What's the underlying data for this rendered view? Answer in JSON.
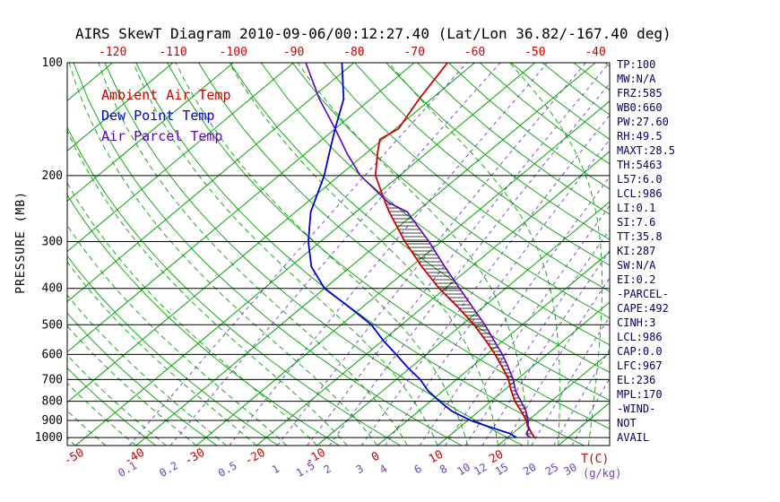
{
  "title": "AIRS SkewT Diagram 2010-09-06/00:12:27.40 (Lat/Lon 36.82/-167.40 deg)",
  "legend": {
    "ambient": "Ambient Air Temp",
    "dew": "Dew Point Temp",
    "parcel": "Air Parcel Temp"
  },
  "axes": {
    "pressure_label": "PRESSURE (MB)",
    "pressure_ticks": [
      100,
      200,
      300,
      400,
      500,
      600,
      700,
      800,
      900,
      1000
    ],
    "top_temp_ticks": [
      -120,
      -110,
      -100,
      -90,
      -80,
      -70,
      -60,
      -50,
      -40
    ],
    "bottom_temp_ticks": [
      -50,
      -40,
      -30,
      -20,
      -10,
      0,
      10,
      20
    ],
    "bottom_temp_unit": "T(C)",
    "mixing_ratio_ticks": [
      0.1,
      0.2,
      0.5,
      1,
      1.5,
      2,
      3,
      4,
      6,
      8,
      10,
      12,
      15,
      20,
      25,
      30
    ],
    "mixing_ratio_unit": "(g/kg)"
  },
  "stats": {
    "lines": [
      "TP:100",
      "MW:N/A",
      "FRZ:585",
      "WB0:660",
      "PW:27.60",
      "RH:49.5",
      "MAXT:28.5",
      "TH:5463",
      "L57:6.0",
      "LCL:986",
      "LI:0.1",
      "SI:7.6",
      "TT:35.8",
      "KI:287",
      "SW:N/A",
      "EI:0.2",
      "-PARCEL-",
      "CAPE:492",
      "CINH:3",
      "LCL:986",
      "CAP:0.0",
      "LFC:967",
      "EL:236",
      "MPL:170",
      "-WIND-",
      "NOT",
      "AVAIL"
    ]
  },
  "colors": {
    "grid_green": "#00a400",
    "mixing_purple": "#6d3fc0",
    "ambient_red": "#cc0000",
    "dew_blue": "#0000cc",
    "parcel_purple": "#6600bb",
    "stats_navy": "#000066",
    "tick_red": "#cc0000",
    "axis_black": "#000000"
  },
  "chart_data": {
    "type": "line",
    "title": "AIRS SkewT Diagram 2010-09-06/00:12:27.40 (Lat/Lon 36.82/-167.40 deg)",
    "x_axis": {
      "label": "T(C)",
      "surface_range_c": [
        -50,
        40
      ],
      "skewed": true
    },
    "y_axis": {
      "label": "PRESSURE (MB)",
      "range_mb": [
        100,
        1050
      ],
      "scale": "log",
      "inverted": true
    },
    "series": [
      {
        "name": "Ambient Air Temp",
        "color": "#cc0000",
        "points_p_t": [
          [
            1000,
            24.5
          ],
          [
            975,
            23.2
          ],
          [
            950,
            22.0
          ],
          [
            925,
            20.8
          ],
          [
            900,
            19.7
          ],
          [
            850,
            17.0
          ],
          [
            800,
            14.0
          ],
          [
            750,
            11.3
          ],
          [
            700,
            8.6
          ],
          [
            650,
            5.2
          ],
          [
            600,
            1.4
          ],
          [
            550,
            -3.0
          ],
          [
            500,
            -8.0
          ],
          [
            450,
            -14.0
          ],
          [
            400,
            -21.0
          ],
          [
            350,
            -28.2
          ],
          [
            300,
            -36.0
          ],
          [
            250,
            -44.5
          ],
          [
            236,
            -47.0
          ],
          [
            200,
            -54.0
          ],
          [
            175,
            -58.0
          ],
          [
            160,
            -60.5
          ],
          [
            150,
            -59.5
          ],
          [
            125,
            -62.0
          ],
          [
            100,
            -64.5
          ]
        ]
      },
      {
        "name": "Dew Point Temp",
        "color": "#0000cc",
        "points_p_t": [
          [
            1000,
            21.5
          ],
          [
            975,
            19.5
          ],
          [
            950,
            16.5
          ],
          [
            925,
            13.5
          ],
          [
            900,
            10.5
          ],
          [
            850,
            5.5
          ],
          [
            800,
            1.5
          ],
          [
            750,
            -2.5
          ],
          [
            700,
            -6.0
          ],
          [
            650,
            -10.5
          ],
          [
            600,
            -15.0
          ],
          [
            550,
            -20.0
          ],
          [
            500,
            -25.0
          ],
          [
            450,
            -32.0
          ],
          [
            400,
            -40.0
          ],
          [
            350,
            -46.5
          ],
          [
            300,
            -52.0
          ],
          [
            250,
            -57.5
          ],
          [
            200,
            -62.5
          ],
          [
            175,
            -66.0
          ],
          [
            150,
            -70.0
          ],
          [
            125,
            -74.5
          ],
          [
            100,
            -82.0
          ]
        ]
      },
      {
        "name": "Air Parcel Temp",
        "color": "#6600bb",
        "points_p_t": [
          [
            1000,
            23.8
          ],
          [
            986,
            22.8
          ],
          [
            975,
            22.3
          ],
          [
            950,
            21.8
          ],
          [
            925,
            20.9
          ],
          [
            900,
            20.0
          ],
          [
            850,
            17.8
          ],
          [
            800,
            15.0
          ],
          [
            750,
            12.0
          ],
          [
            700,
            9.4
          ],
          [
            650,
            6.2
          ],
          [
            600,
            2.6
          ],
          [
            550,
            -1.6
          ],
          [
            500,
            -6.2
          ],
          [
            450,
            -11.6
          ],
          [
            400,
            -17.6
          ],
          [
            350,
            -24.4
          ],
          [
            300,
            -32.0
          ],
          [
            250,
            -41.5
          ],
          [
            236,
            -46.5
          ],
          [
            200,
            -56.5
          ],
          [
            175,
            -63.0
          ],
          [
            150,
            -70.0
          ],
          [
            125,
            -78.5
          ],
          [
            100,
            -88.0
          ]
        ]
      }
    ],
    "background_lines": {
      "isotherms_c": {
        "min": -130,
        "max": 40,
        "step": 10
      },
      "dry_adiabats_theta_c": {
        "min": -40,
        "max": 190,
        "step": 10
      },
      "moist_adiabats_start_c": {
        "min": -60,
        "max": 40,
        "step": 5
      },
      "mixing_ratio_g_kg": [
        0.1,
        0.2,
        0.5,
        1,
        1.5,
        2,
        3,
        4,
        6,
        8,
        10,
        12,
        15,
        20,
        25,
        30
      ]
    },
    "hatched_region": {
      "between": [
        "Air Parcel Temp",
        "Ambient Air Temp"
      ],
      "pressure_range_mb": [
        1000,
        236
      ],
      "meaning": "CAPE/CINH area"
    }
  }
}
